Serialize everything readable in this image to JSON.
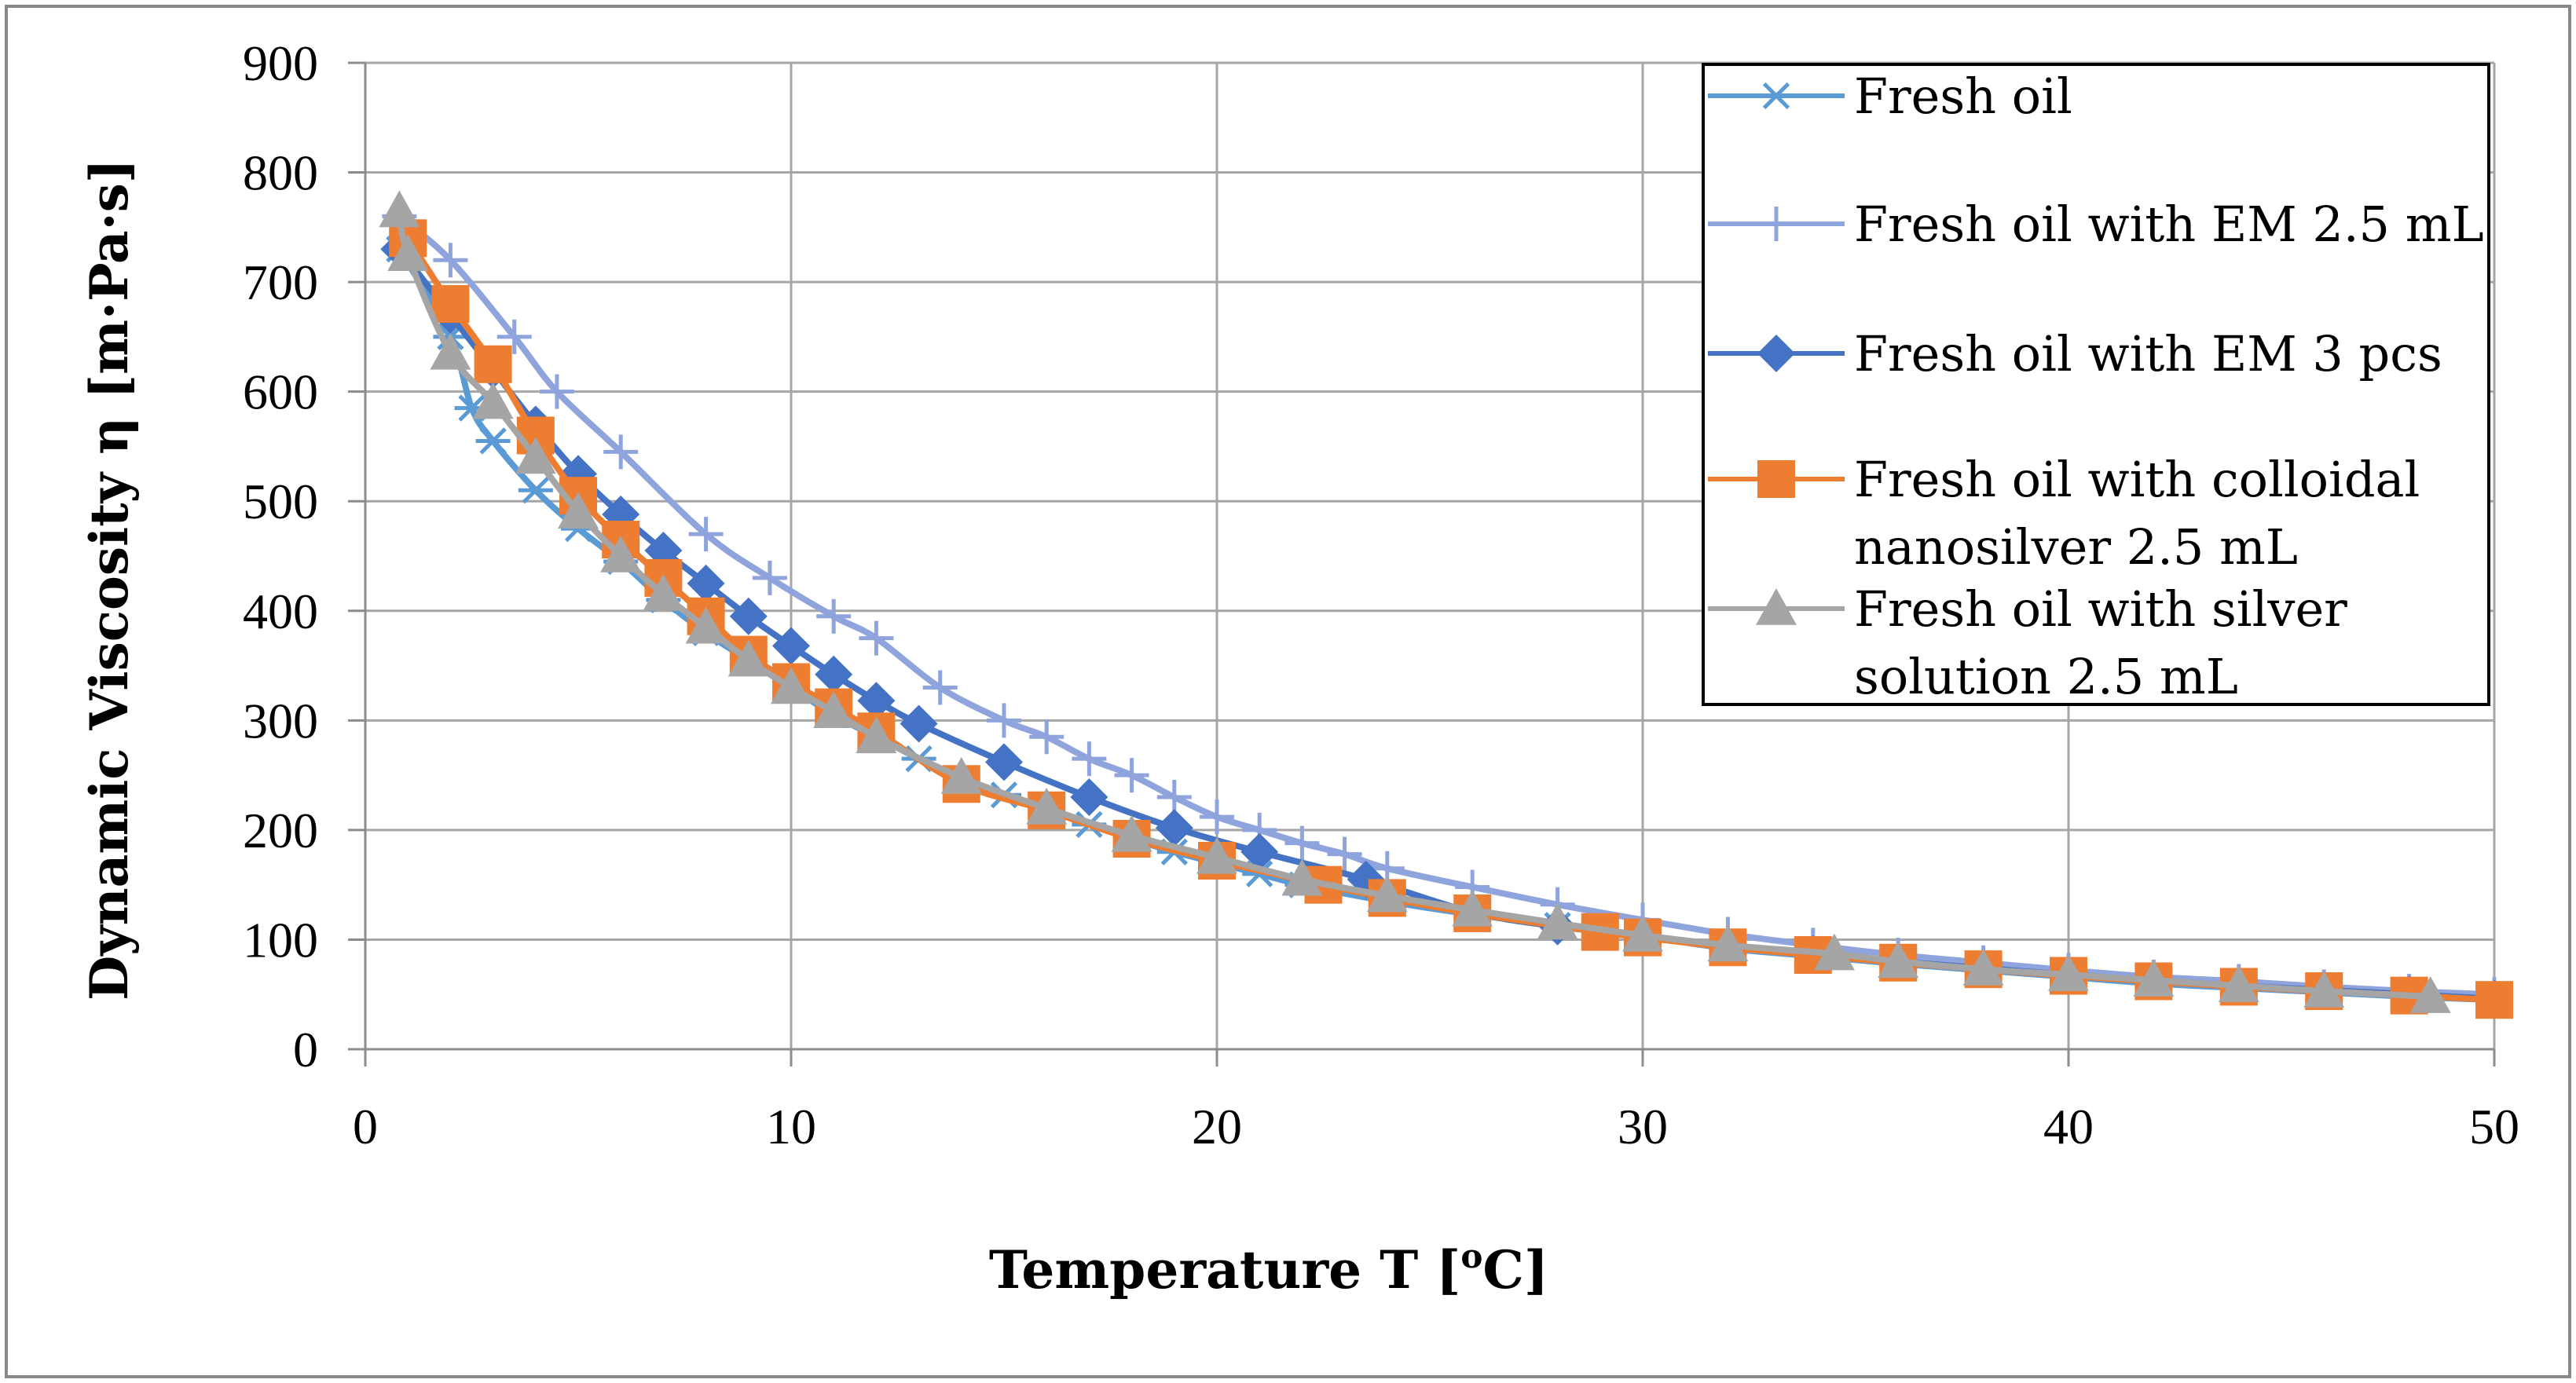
{
  "chart_data": {
    "type": "line",
    "title": "",
    "xlabel": "Temperature T [",
    "xlabel_sup": "o",
    "xlabel_end": "C]",
    "ylabel": "Dynamic Viscosity η [m·Pa·s]",
    "xlim": [
      0,
      50
    ],
    "ylim": [
      0,
      900
    ],
    "xticks": [
      0,
      10,
      20,
      30,
      40,
      50
    ],
    "yticks": [
      0,
      100,
      200,
      300,
      400,
      500,
      600,
      700,
      800,
      900
    ],
    "grid": true,
    "legend_position": "top-right",
    "series": [
      {
        "name": "Fresh oil",
        "legend_lines": [
          "Fresh oil"
        ],
        "color": "#5b9bd5",
        "marker": "asterisk",
        "x": [
          0.8,
          2,
          2.5,
          3,
          4,
          5,
          6,
          7,
          8,
          9,
          10,
          11,
          12,
          13,
          14,
          15,
          16,
          17,
          18,
          19,
          20,
          21,
          22,
          24,
          26,
          28,
          30,
          32,
          34,
          36,
          38,
          40,
          42,
          44,
          46,
          48,
          50
        ],
        "y": [
          730,
          650,
          585,
          555,
          510,
          475,
          445,
          410,
          380,
          355,
          330,
          305,
          285,
          265,
          245,
          232,
          218,
          205,
          192,
          180,
          170,
          160,
          150,
          135,
          123,
          113,
          103,
          92,
          85,
          78,
          72,
          66,
          60,
          56,
          52,
          48,
          45
        ]
      },
      {
        "name": "Fresh oil with EM 2.5 mL",
        "legend_lines": [
          "Fresh oil with EM 2.5 mL"
        ],
        "color": "#8fa4dc",
        "marker": "plus",
        "x": [
          0.8,
          2,
          3.5,
          4.5,
          6,
          8,
          9.5,
          11,
          12,
          13.5,
          15,
          16,
          17,
          18,
          19,
          20,
          21,
          22,
          23,
          24,
          26,
          28,
          30,
          32,
          34,
          36,
          38,
          40,
          42,
          44,
          46,
          48,
          50
        ],
        "y": [
          760,
          720,
          650,
          600,
          545,
          470,
          430,
          395,
          375,
          330,
          300,
          285,
          265,
          250,
          230,
          212,
          200,
          188,
          178,
          165,
          148,
          132,
          118,
          105,
          95,
          86,
          79,
          72,
          66,
          62,
          57,
          53,
          50
        ]
      },
      {
        "name": "Fresh oil with EM 3 pcs",
        "legend_lines": [
          "Fresh oil with EM 3 pcs"
        ],
        "color": "#4472c4",
        "marker": "diamond",
        "x": [
          0.8,
          2,
          3,
          4,
          5,
          6,
          7,
          8,
          9,
          10,
          11,
          12,
          13,
          15,
          17,
          19,
          21,
          23.5,
          26,
          28,
          30,
          32,
          34,
          36,
          38,
          40,
          42,
          44,
          46,
          48,
          50
        ],
        "y": [
          730,
          670,
          620,
          570,
          525,
          488,
          455,
          425,
          395,
          368,
          342,
          318,
          297,
          262,
          230,
          202,
          180,
          155,
          125,
          112,
          103,
          94,
          87,
          80,
          74,
          68,
          63,
          58,
          54,
          50,
          46
        ]
      },
      {
        "name": "Fresh oil with colloidal nanosilver 2.5 mL",
        "legend_lines": [
          "Fresh oil with colloidal",
          "nanosilver 2.5 mL"
        ],
        "color": "#ed7d31",
        "marker": "square",
        "x": [
          1,
          2,
          3,
          4,
          5,
          6,
          7,
          8,
          9,
          10,
          11,
          12,
          14,
          16,
          18,
          20,
          22.5,
          24,
          26,
          29,
          30,
          32,
          34,
          36,
          38,
          40,
          42,
          44,
          46,
          48,
          50
        ],
        "y": [
          740,
          680,
          625,
          560,
          505,
          465,
          430,
          395,
          360,
          335,
          312,
          290,
          242,
          218,
          192,
          172,
          150,
          138,
          124,
          107,
          102,
          93,
          86,
          79,
          73,
          67,
          62,
          57,
          53,
          49,
          45
        ]
      },
      {
        "name": "Fresh oil with silver solution 2.5 mL",
        "legend_lines": [
          "Fresh oil with silver",
          "solution 2.5 mL"
        ],
        "color": "#a5a5a5",
        "marker": "triangle",
        "x": [
          0.8,
          1,
          2,
          3,
          4,
          5,
          6,
          7,
          8,
          9,
          10,
          11,
          12,
          14,
          16,
          18,
          20,
          22,
          24,
          26,
          28,
          30,
          32,
          34.5,
          36,
          38,
          40,
          42,
          44,
          46,
          48.5
        ],
        "y": [
          765,
          725,
          635,
          590,
          540,
          490,
          450,
          415,
          385,
          355,
          330,
          308,
          285,
          248,
          220,
          195,
          175,
          155,
          140,
          127,
          115,
          104,
          95,
          87,
          80,
          73,
          68,
          63,
          58,
          53,
          48
        ]
      }
    ]
  }
}
